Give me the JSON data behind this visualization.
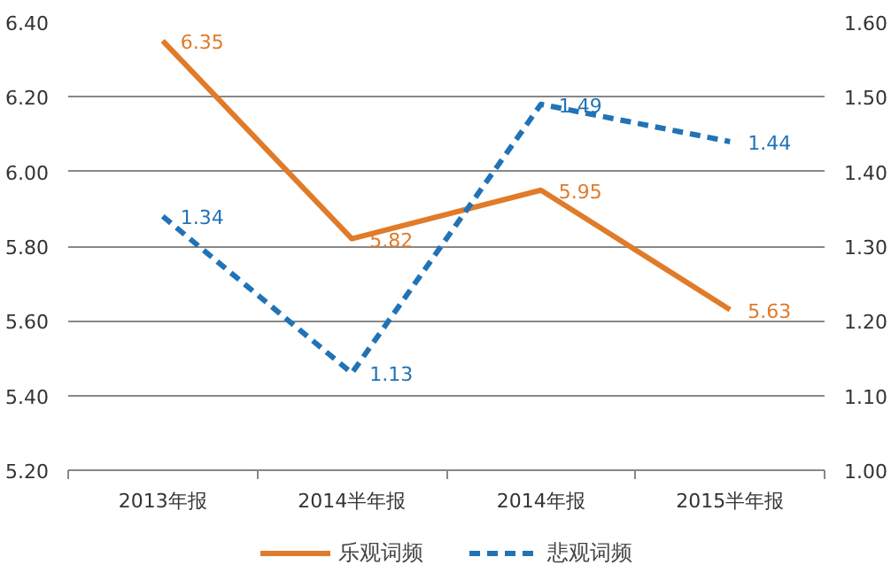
{
  "chart_data": {
    "type": "line",
    "categories": [
      "2013年报",
      "2014半年报",
      "2014年报",
      "2015半年报"
    ],
    "series": [
      {
        "name": "乐观词频",
        "color": "#e07b29",
        "values": [
          6.35,
          5.82,
          5.95,
          5.63
        ],
        "line_style": "solid"
      },
      {
        "name": "悲观词频",
        "color": "#2273b5",
        "values": [
          1.34,
          1.13,
          1.49,
          1.44
        ],
        "axis": "y2",
        "line_style": "dashed"
      }
    ],
    "ylim": [
      5.2,
      6.4
    ],
    "yticks": [
      {
        "value": 5.2,
        "label": "5.20"
      },
      {
        "value": 5.4,
        "label": "5.40"
      },
      {
        "value": 5.6,
        "label": "5.60"
      },
      {
        "value": 5.8,
        "label": "5.80"
      },
      {
        "value": 6.0,
        "label": "6.00"
      },
      {
        "value": 6.2,
        "label": "6.20"
      },
      {
        "value": 6.4,
        "label": "6.40"
      }
    ],
    "y2lim": [
      1.0,
      1.6
    ],
    "y2ticks": [
      {
        "value": 1.0,
        "label": "1.00"
      },
      {
        "value": 1.1,
        "label": "1.10"
      },
      {
        "value": 1.2,
        "label": "1.20"
      },
      {
        "value": 1.3,
        "label": "1.30"
      },
      {
        "value": 1.4,
        "label": "1.40"
      },
      {
        "value": 1.5,
        "label": "1.50"
      },
      {
        "value": 1.6,
        "label": "1.60"
      }
    ],
    "data_labels": true,
    "grid": "y",
    "legend": "bottom",
    "marker": "none"
  }
}
